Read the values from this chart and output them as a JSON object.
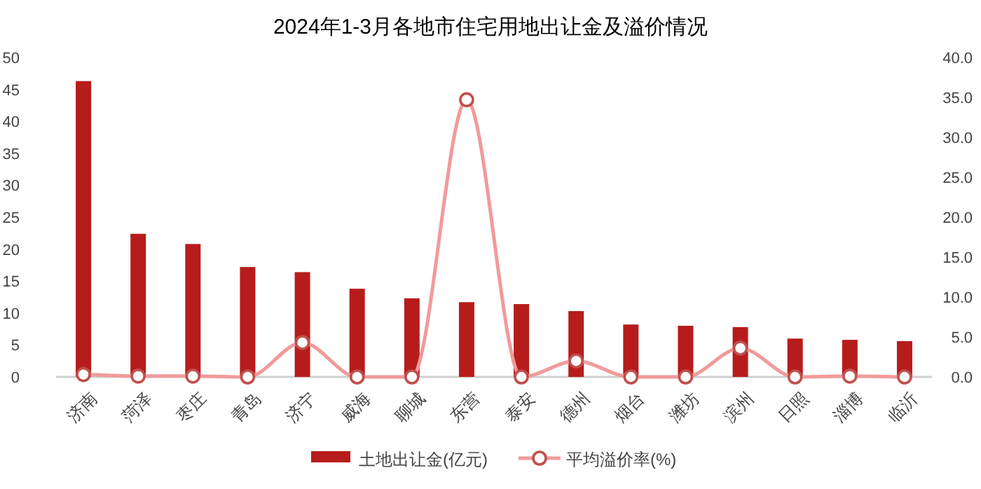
{
  "chart_data": {
    "type": "bar",
    "title": "2024年1-3月各地市住宅用地出让金及溢价情况",
    "categories": [
      "济南",
      "菏泽",
      "枣庄",
      "青岛",
      "济宁",
      "威海",
      "聊城",
      "东营",
      "泰安",
      "德州",
      "烟台",
      "潍坊",
      "滨州",
      "日照",
      "淄博",
      "临沂"
    ],
    "series": [
      {
        "name": "土地出让金(亿元)",
        "color": "#b71c1c",
        "values": [
          46.3,
          22.4,
          20.8,
          17.2,
          16.4,
          13.8,
          12.3,
          11.7,
          11.4,
          10.3,
          8.2,
          8.0,
          7.8,
          6.0,
          5.8,
          5.6
        ]
      },
      {
        "name": "平均溢价率(%)",
        "type": "line",
        "axis": "y2",
        "color": "#f19a9a",
        "marker": "circle",
        "values": [
          0.3,
          0.1,
          0.1,
          0,
          4.3,
          0,
          0,
          34.7,
          0,
          2.0,
          0,
          0,
          3.6,
          0,
          0.1,
          0
        ]
      }
    ],
    "ylim": [
      0,
      50
    ],
    "yticks": [
      0,
      5,
      10,
      15,
      20,
      25,
      30,
      35,
      40,
      45,
      50
    ],
    "y2lim": [
      0,
      40
    ],
    "y2ticks": [
      {
        "value": 0,
        "label": "0.0"
      },
      {
        "value": 5,
        "label": "5.0"
      },
      {
        "value": 10,
        "label": "10.0"
      },
      {
        "value": 15,
        "label": "15.0"
      },
      {
        "value": 20,
        "label": "20.0"
      },
      {
        "value": 25,
        "label": "25.0"
      },
      {
        "value": 30,
        "label": "30.0"
      },
      {
        "value": 35,
        "label": "35.0"
      },
      {
        "value": 40,
        "label": "40.0"
      }
    ],
    "legend": "bottom",
    "grid": false
  }
}
